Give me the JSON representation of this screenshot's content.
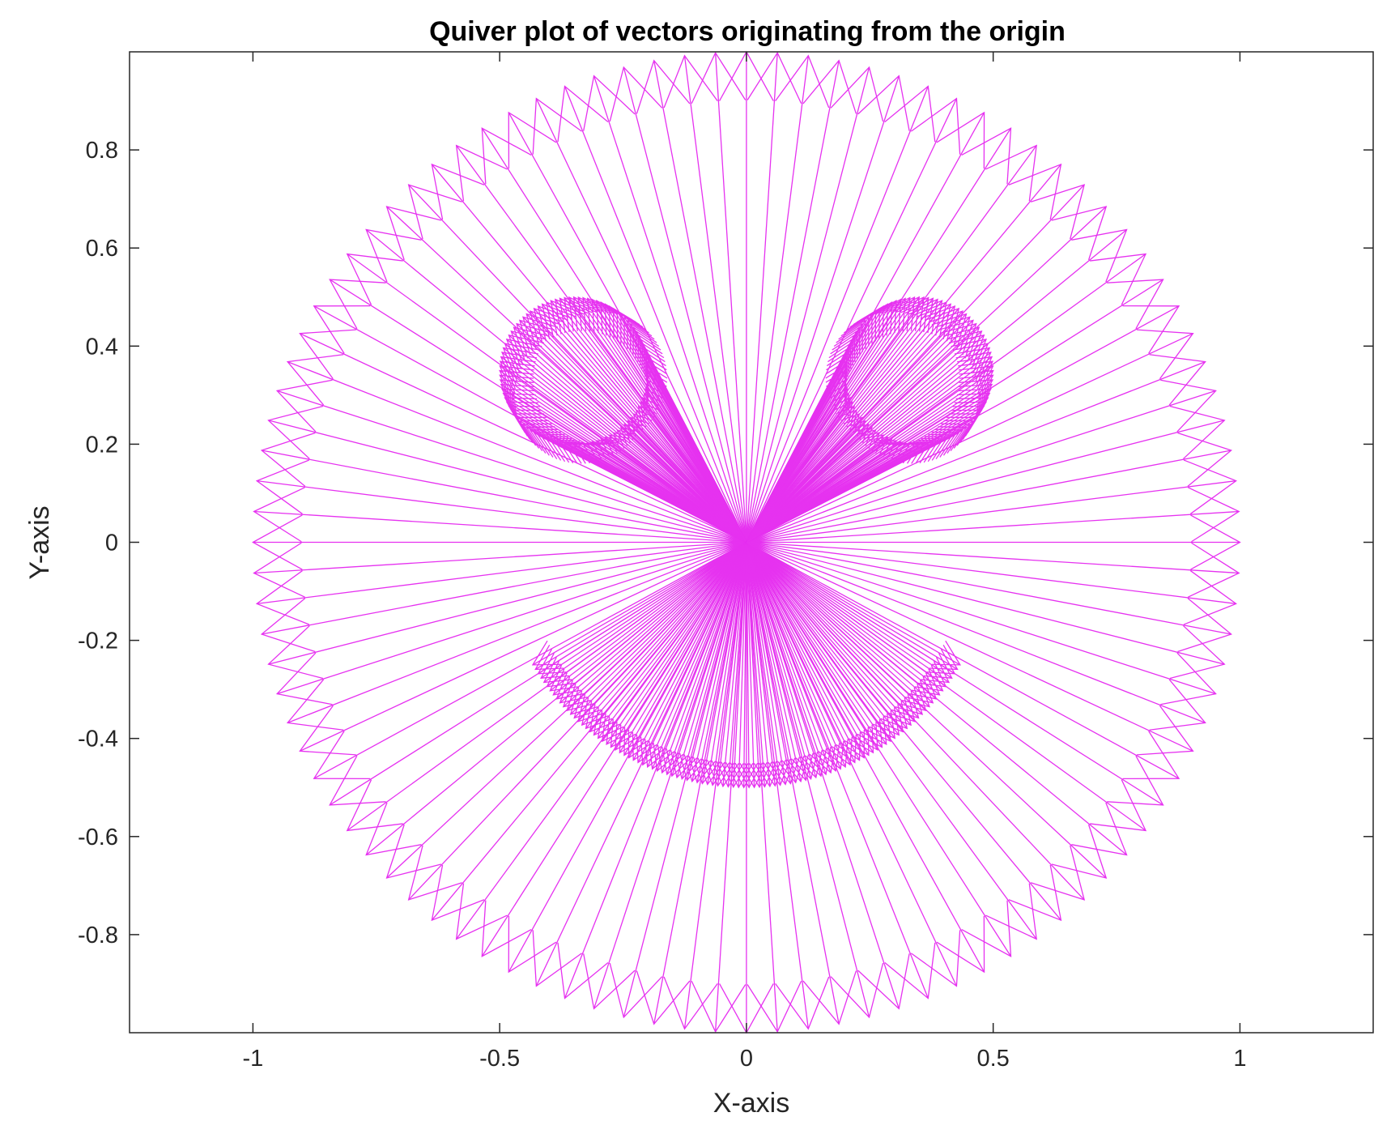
{
  "chart_data": {
    "type": "quiver",
    "title": "Quiver plot of vectors originating from the origin",
    "xlabel": "X-axis",
    "ylabel": "Y-axis",
    "xlim": [
      -1.25,
      1.27
    ],
    "ylim": [
      -1.0,
      1.0
    ],
    "xticks": [
      -1,
      -0.5,
      0,
      0.5,
      1
    ],
    "xtick_labels": [
      "-1",
      "-0.5",
      "0",
      "0.5",
      "1"
    ],
    "yticks": [
      -0.8,
      -0.6,
      -0.4,
      -0.2,
      0,
      0.2,
      0.4,
      0.6,
      0.8
    ],
    "ytick_labels": [
      "-0.8",
      "-0.6",
      "-0.4",
      "-0.2",
      "0",
      "0.2",
      "0.4",
      "0.6",
      "0.8"
    ],
    "grid": false,
    "vector_color": "#e632f0",
    "origin": [
      0,
      0
    ],
    "groups": [
      {
        "shape": "circle",
        "center": [
          0,
          0
        ],
        "radius": 1.0,
        "angle_start_deg": 0,
        "angle_end_deg": 360,
        "count": 100
      },
      {
        "shape": "circle",
        "center": [
          -0.35,
          0.35
        ],
        "radius": 0.15,
        "angle_start_deg": 0,
        "angle_end_deg": 360,
        "count": 100
      },
      {
        "shape": "circle",
        "center": [
          0.35,
          0.35
        ],
        "radius": 0.15,
        "angle_start_deg": 0,
        "angle_end_deg": 360,
        "count": 100
      },
      {
        "shape": "arc",
        "center": [
          0,
          0
        ],
        "radius": 0.5,
        "angle_start_deg": 210,
        "angle_end_deg": 330,
        "count": 100
      }
    ]
  }
}
